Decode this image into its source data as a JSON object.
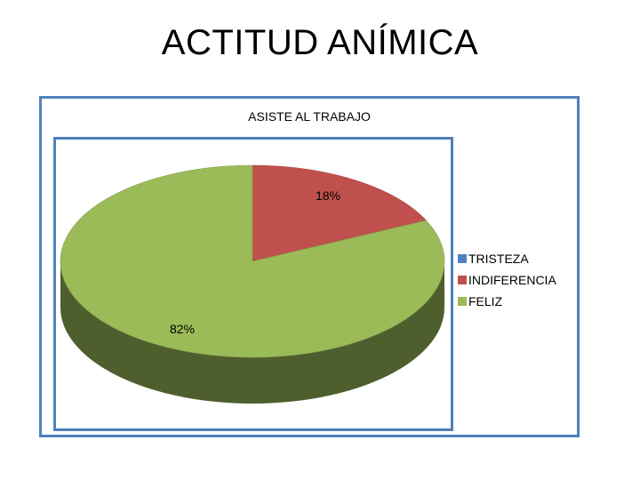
{
  "slide": {
    "title": "ACTITUD ANÍMICA"
  },
  "chart_data": {
    "type": "pie",
    "title": "ASISTE AL TRABAJO",
    "categories": [
      "TRISTEZA",
      "INDIFERENCIA",
      "FELIZ"
    ],
    "values": [
      0,
      18,
      82
    ],
    "data_labels": [
      "",
      "18%",
      "82%"
    ],
    "colors": [
      "#4f81bd",
      "#c0504d",
      "#9bbb59"
    ],
    "legend_position": "right",
    "style": "3d"
  }
}
